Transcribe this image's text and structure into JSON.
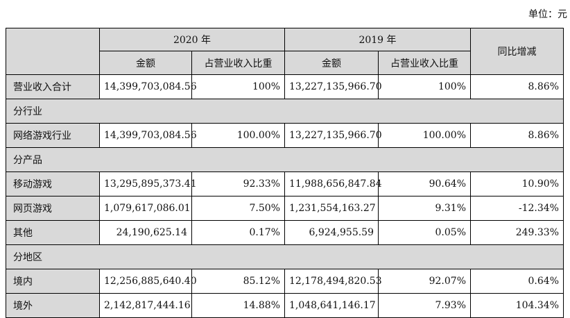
{
  "unit_label": "单位：元",
  "header": {
    "year_2020": "2020 年",
    "year_2019": "2019 年",
    "yoy": "同比增减",
    "amount_2020": "金额",
    "ratio_2020": "占营业收入比重",
    "amount_2019": "金额",
    "ratio_2019": "占营业收入比重"
  },
  "rows": {
    "total": {
      "label": "营业收入合计",
      "amt2020": "14,399,703,084.56",
      "pct2020": "100%",
      "amt2019": "13,227,135,966.70",
      "pct2019": "100%",
      "yoy": "8.86%"
    },
    "sec_industry": "分行业",
    "industry": {
      "label": "网络游戏行业",
      "amt2020": "14,399,703,084.56",
      "pct2020": "100.00%",
      "amt2019": "13,227,135,966.70",
      "pct2019": "100.00%",
      "yoy": "8.86%"
    },
    "sec_product": "分产品",
    "mobile": {
      "label": "移动游戏",
      "amt2020": "13,295,895,373.41",
      "pct2020": "92.33%",
      "amt2019": "11,988,656,847.84",
      "pct2019": "90.64%",
      "yoy": "10.90%"
    },
    "web": {
      "label": "网页游戏",
      "amt2020": "1,079,617,086.01",
      "pct2020": "7.50%",
      "amt2019": "1,231,554,163.27",
      "pct2019": "9.31%",
      "yoy": "-12.34%"
    },
    "other": {
      "label": "其他",
      "amt2020": "24,190,625.14",
      "pct2020": "0.17%",
      "amt2019": "6,924,955.59",
      "pct2019": "0.05%",
      "yoy": "249.33%"
    },
    "sec_region": "分地区",
    "domestic": {
      "label": "境内",
      "amt2020": "12,256,885,640.40",
      "pct2020": "85.12%",
      "amt2019": "12,178,494,820.53",
      "pct2019": "92.07%",
      "yoy": "0.64%"
    },
    "overseas": {
      "label": "境外",
      "amt2020": "2,142,817,444.16",
      "pct2020": "14.88%",
      "amt2019": "1,048,641,146.17",
      "pct2019": "7.93%",
      "yoy": "104.34%"
    }
  }
}
